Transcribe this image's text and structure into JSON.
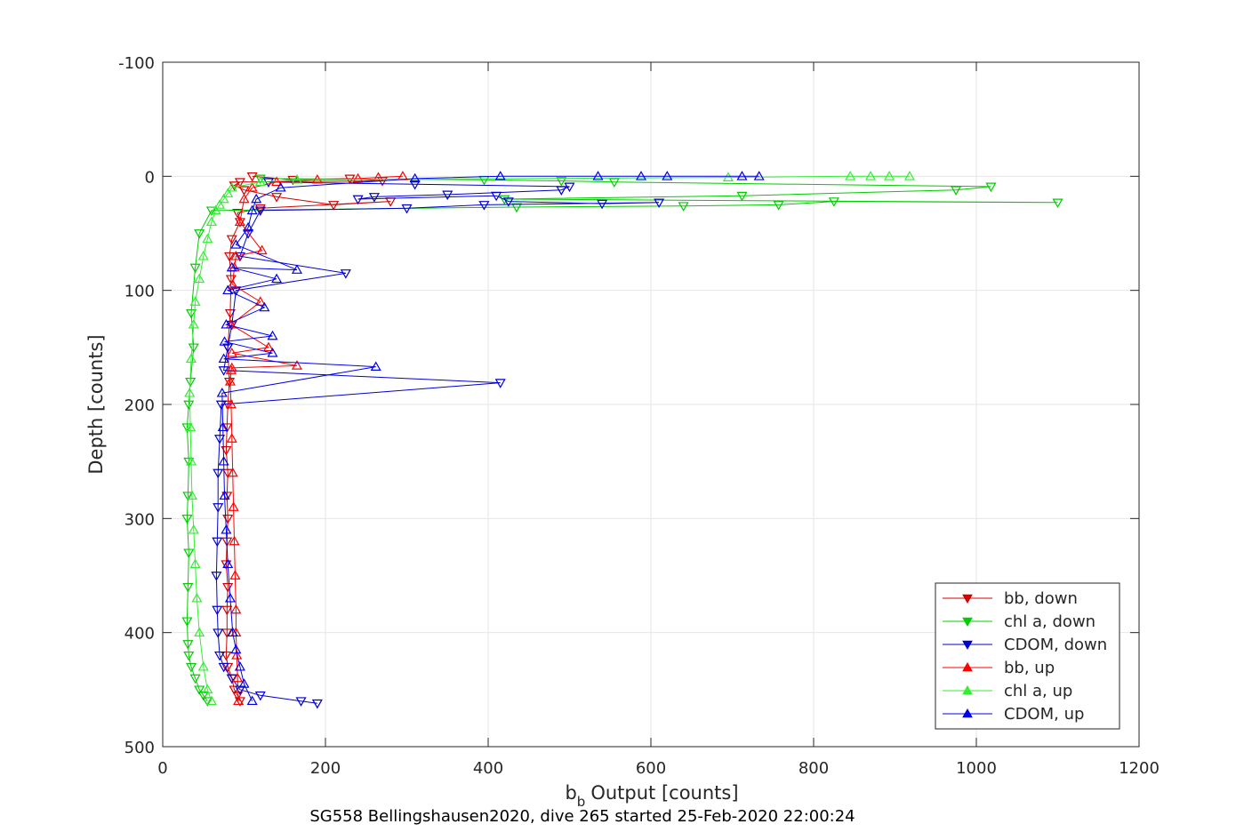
{
  "chart_data": {
    "type": "line",
    "title": "SG558 Bellingshausen2020, dive 265 started 25-Feb-2020 22:00:24",
    "xlabel": "Output [counts]",
    "xlabel_prefix": "b",
    "xlabel_subscript": "b",
    "ylabel": "Depth [counts]",
    "xlim": [
      0,
      1200
    ],
    "ylim": [
      -100,
      500
    ],
    "y_reversed": true,
    "xticks": [
      0,
      200,
      400,
      600,
      800,
      1000,
      1200
    ],
    "yticks": [
      -100,
      0,
      100,
      200,
      300,
      400,
      500
    ],
    "grid": true,
    "legend_position": "bottom-right",
    "series": [
      {
        "name": "bb, down",
        "color": "#d40000",
        "marker": "triangle-down",
        "x": [
          110,
          160,
          230,
          270,
          95,
          88,
          100,
          140,
          210,
          280,
          120,
          92,
          95,
          85,
          82,
          84,
          83,
          80,
          82,
          80,
          79,
          78,
          80,
          79,
          80,
          79,
          78,
          80,
          79,
          79,
          78,
          80,
          85,
          88,
          92,
          95
        ],
        "y": [
          0,
          3,
          2,
          4,
          5,
          8,
          12,
          18,
          25,
          22,
          28,
          32,
          40,
          55,
          70,
          90,
          120,
          150,
          180,
          200,
          220,
          240,
          260,
          280,
          300,
          320,
          340,
          360,
          380,
          400,
          420,
          430,
          440,
          450,
          455,
          460
        ]
      },
      {
        "name": "chl a, down",
        "color": "#00cc00",
        "marker": "triangle-down",
        "x": [
          120,
          395,
          490,
          555,
          1018,
          975,
          712,
          420,
          1100,
          825,
          757,
          640,
          435,
          60,
          45,
          40,
          35,
          38,
          34,
          32,
          30,
          32,
          31,
          30,
          32,
          31,
          30,
          31,
          32,
          35,
          40,
          45,
          50,
          55
        ],
        "y": [
          2,
          3,
          4,
          5,
          9,
          12,
          17,
          20,
          23,
          22,
          25,
          26,
          27,
          30,
          50,
          80,
          120,
          150,
          180,
          200,
          220,
          250,
          280,
          300,
          330,
          360,
          390,
          410,
          420,
          430,
          440,
          450,
          455,
          460
        ]
      },
      {
        "name": "CDOM, down",
        "color": "#0000cc",
        "marker": "triangle-down",
        "x": [
          130,
          310,
          500,
          490,
          350,
          260,
          240,
          410,
          425,
          540,
          610,
          395,
          300,
          120,
          105,
          95,
          225,
          90,
          85,
          80,
          75,
          415,
          72,
          70,
          68,
          68,
          67,
          66,
          67,
          68,
          70,
          75,
          85,
          95,
          120,
          170,
          190
        ],
        "y": [
          5,
          7,
          9,
          12,
          16,
          18,
          20,
          17,
          22,
          24,
          23,
          25,
          28,
          30,
          50,
          70,
          85,
          100,
          130,
          150,
          170,
          181,
          200,
          230,
          260,
          290,
          320,
          350,
          380,
          400,
          420,
          430,
          440,
          450,
          455,
          460,
          462
        ]
      },
      {
        "name": "bb, up",
        "color": "#ff0000",
        "marker": "triangle-up",
        "x": [
          93,
          92,
          91,
          90,
          90,
          89,
          88,
          87,
          86,
          85,
          84,
          83,
          84,
          85,
          165,
          85,
          130,
          84,
          120,
          86,
          88,
          90,
          122,
          95,
          100,
          110,
          140,
          190,
          240,
          265,
          295
        ],
        "y": [
          460,
          440,
          420,
          400,
          380,
          350,
          320,
          290,
          260,
          230,
          200,
          180,
          170,
          168,
          166,
          155,
          150,
          130,
          110,
          95,
          80,
          70,
          65,
          40,
          20,
          10,
          5,
          3,
          2,
          1,
          0
        ]
      },
      {
        "name": "chl a, up",
        "color": "#33ee33",
        "marker": "triangle-up",
        "x": [
          60,
          55,
          50,
          45,
          42,
          40,
          38,
          36,
          35,
          34,
          33,
          35,
          38,
          40,
          45,
          50,
          55,
          60,
          65,
          70,
          75,
          80,
          85,
          120,
          165,
          695,
          845,
          870,
          893,
          918
        ],
        "y": [
          460,
          450,
          430,
          400,
          370,
          340,
          310,
          280,
          250,
          220,
          190,
          160,
          130,
          110,
          90,
          70,
          55,
          40,
          30,
          25,
          20,
          15,
          10,
          5,
          3,
          1,
          0,
          0,
          0,
          0
        ]
      },
      {
        "name": "CDOM, up",
        "color": "#0000ee",
        "marker": "triangle-up",
        "x": [
          110,
          100,
          95,
          90,
          86,
          83,
          80,
          78,
          76,
          75,
          74,
          73,
          262,
          75,
          135,
          76,
          135,
          78,
          125,
          80,
          140,
          85,
          165,
          90,
          105,
          110,
          115,
          145,
          310,
          415,
          535,
          588,
          620,
          712,
          733
        ],
        "y": [
          460,
          445,
          430,
          415,
          400,
          370,
          340,
          310,
          280,
          250,
          220,
          190,
          167,
          160,
          155,
          145,
          140,
          130,
          115,
          100,
          90,
          80,
          82,
          60,
          45,
          30,
          20,
          10,
          2,
          0,
          0,
          0,
          0,
          0,
          0
        ]
      }
    ]
  }
}
